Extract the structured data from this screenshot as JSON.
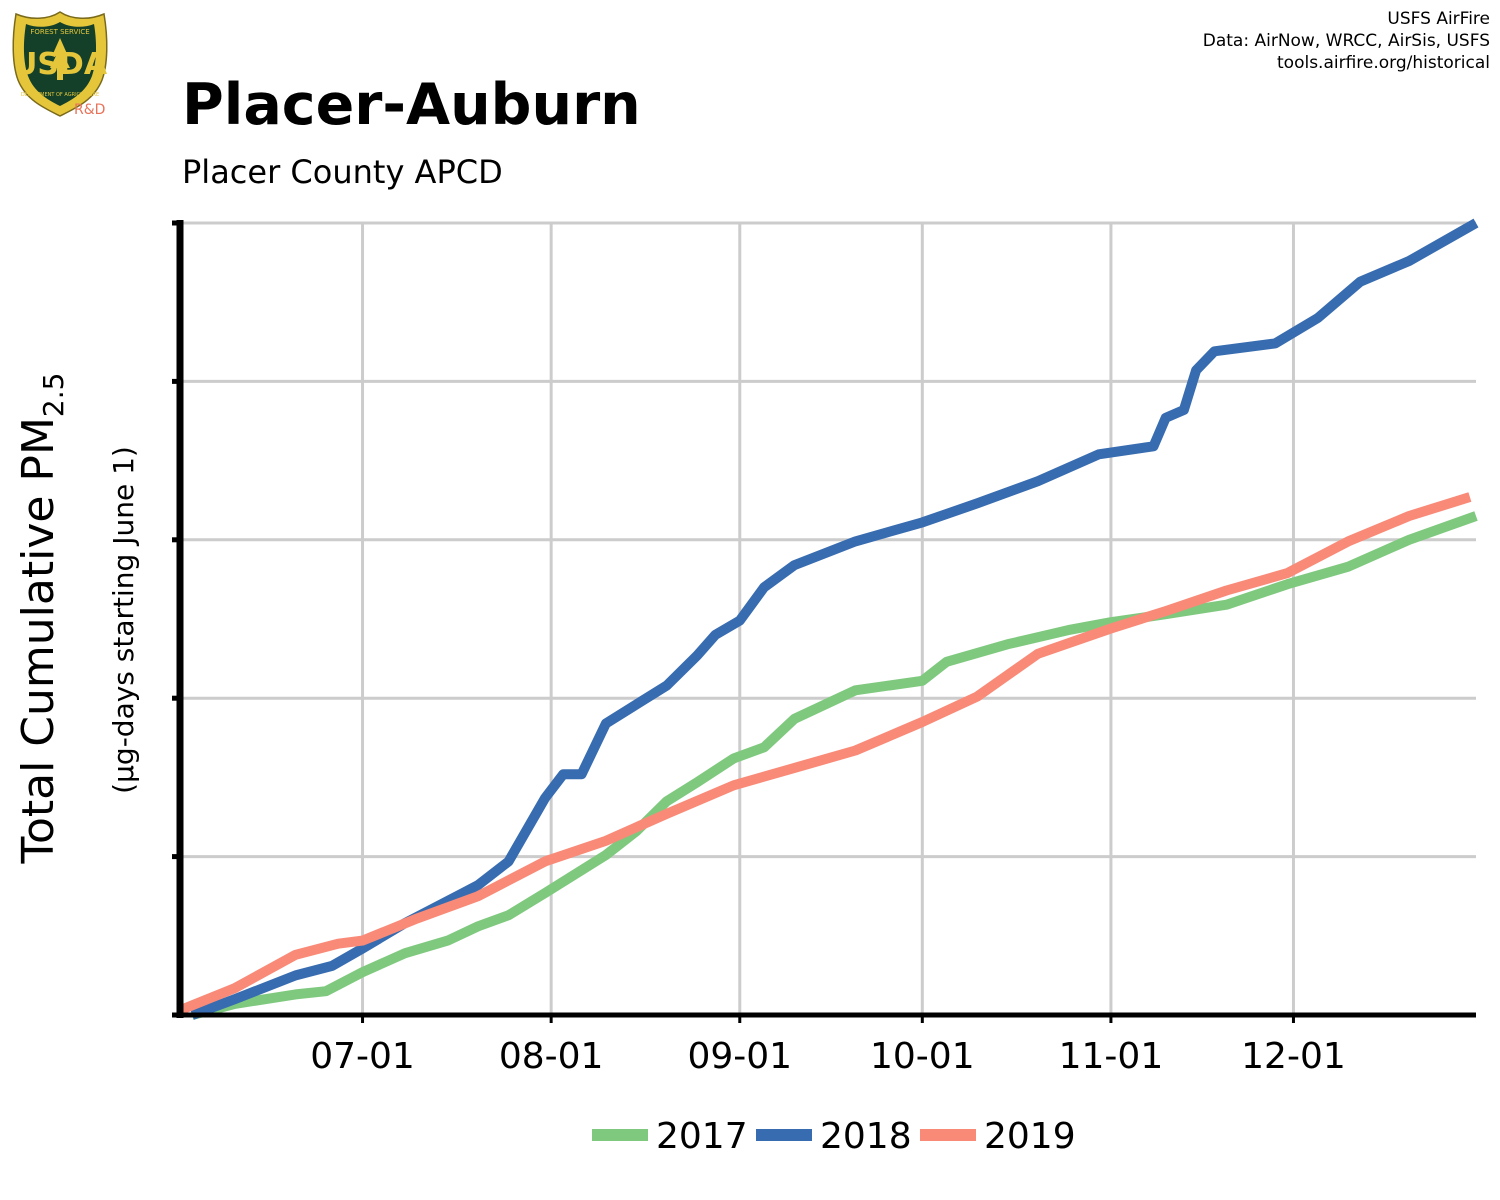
{
  "header": {
    "title": "Placer-Auburn",
    "subtitle": "Placer County APCD",
    "credits": [
      "USFS AirFire",
      "Data: AirNow, WRCC, AirSis, USFS",
      "tools.airfire.org/historical"
    ]
  },
  "logo": {
    "ring_text_top": "FOREST SERVICE",
    "ring_text_bottom": "DEPARTMENT OF AGRICULTURE",
    "letters": "USDA",
    "label": "R&D",
    "label_color": "#e8735a",
    "shield_color": "#14402a",
    "trim_color": "#e5c63b"
  },
  "chart_data": {
    "type": "line",
    "ylabel": "Total Cumulative PM",
    "ylabel_subscript": "2.5",
    "ylabel_sub": "(µg-days starting June 1)",
    "x_tick_labels": [
      "07-01",
      "08-01",
      "09-01",
      "10-01",
      "11-01",
      "12-01"
    ],
    "x_tick_dates": [
      "2000-07-01",
      "2000-08-01",
      "2000-09-01",
      "2000-10-01",
      "2000-11-01",
      "2000-12-01"
    ],
    "xlim": [
      "2000-06-01",
      "2000-12-31"
    ],
    "ylim": [
      0,
      5
    ],
    "y_ticks": [
      0,
      1,
      2,
      3,
      4,
      5
    ],
    "y_tick_labels_shown": false,
    "grid": true,
    "legend_position": "bottom-center",
    "series": [
      {
        "name": "2017",
        "color": "#7fc97f",
        "points": [
          [
            "2000-06-03",
            0.0
          ],
          [
            "2000-06-10",
            0.07
          ],
          [
            "2000-06-20",
            0.13
          ],
          [
            "2000-06-25",
            0.15
          ],
          [
            "2000-07-01",
            0.27
          ],
          [
            "2000-07-08",
            0.39
          ],
          [
            "2000-07-15",
            0.47
          ],
          [
            "2000-07-20",
            0.56
          ],
          [
            "2000-07-25",
            0.63
          ],
          [
            "2000-07-31",
            0.77
          ],
          [
            "2000-08-05",
            0.89
          ],
          [
            "2000-08-10",
            1.01
          ],
          [
            "2000-08-15",
            1.16
          ],
          [
            "2000-08-20",
            1.35
          ],
          [
            "2000-08-25",
            1.47
          ],
          [
            "2000-08-31",
            1.62
          ],
          [
            "2000-09-05",
            1.69
          ],
          [
            "2000-09-10",
            1.87
          ],
          [
            "2000-09-20",
            2.05
          ],
          [
            "2000-10-01",
            2.11
          ],
          [
            "2000-10-05",
            2.23
          ],
          [
            "2000-10-15",
            2.34
          ],
          [
            "2000-10-25",
            2.43
          ],
          [
            "2000-11-01",
            2.48
          ],
          [
            "2000-11-10",
            2.53
          ],
          [
            "2000-11-20",
            2.59
          ],
          [
            "2000-11-30",
            2.72
          ],
          [
            "2000-12-10",
            2.83
          ],
          [
            "2000-12-20",
            3.0
          ],
          [
            "2000-12-31",
            3.15
          ]
        ]
      },
      {
        "name": "2018",
        "color": "#386cb0",
        "points": [
          [
            "2000-06-03",
            0.0
          ],
          [
            "2000-06-10",
            0.1
          ],
          [
            "2000-06-20",
            0.25
          ],
          [
            "2000-06-26",
            0.31
          ],
          [
            "2000-07-01",
            0.42
          ],
          [
            "2000-07-08",
            0.58
          ],
          [
            "2000-07-15",
            0.72
          ],
          [
            "2000-07-20",
            0.82
          ],
          [
            "2000-07-25",
            0.97
          ],
          [
            "2000-07-31",
            1.37
          ],
          [
            "2000-08-03",
            1.52
          ],
          [
            "2000-08-06",
            1.52
          ],
          [
            "2000-08-10",
            1.84
          ],
          [
            "2000-08-15",
            1.96
          ],
          [
            "2000-08-20",
            2.08
          ],
          [
            "2000-08-25",
            2.27
          ],
          [
            "2000-08-28",
            2.4
          ],
          [
            "2000-09-01",
            2.49
          ],
          [
            "2000-09-05",
            2.7
          ],
          [
            "2000-09-10",
            2.84
          ],
          [
            "2000-09-20",
            2.99
          ],
          [
            "2000-10-01",
            3.11
          ],
          [
            "2000-10-10",
            3.23
          ],
          [
            "2000-10-20",
            3.37
          ],
          [
            "2000-10-30",
            3.54
          ],
          [
            "2000-11-08",
            3.59
          ],
          [
            "2000-11-10",
            3.77
          ],
          [
            "2000-11-13",
            3.82
          ],
          [
            "2000-11-15",
            4.07
          ],
          [
            "2000-11-18",
            4.19
          ],
          [
            "2000-11-28",
            4.24
          ],
          [
            "2000-12-05",
            4.4
          ],
          [
            "2000-12-12",
            4.63
          ],
          [
            "2000-12-20",
            4.76
          ],
          [
            "2000-12-31",
            5.0
          ]
        ]
      },
      {
        "name": "2019",
        "color": "#f98a78",
        "points": [
          [
            "2000-06-01",
            0.03
          ],
          [
            "2000-06-10",
            0.17
          ],
          [
            "2000-06-20",
            0.38
          ],
          [
            "2000-06-27",
            0.45
          ],
          [
            "2000-07-01",
            0.47
          ],
          [
            "2000-07-10",
            0.61
          ],
          [
            "2000-07-20",
            0.75
          ],
          [
            "2000-07-31",
            0.97
          ],
          [
            "2000-08-10",
            1.1
          ],
          [
            "2000-08-20",
            1.27
          ],
          [
            "2000-08-31",
            1.45
          ],
          [
            "2000-09-10",
            1.56
          ],
          [
            "2000-09-20",
            1.67
          ],
          [
            "2000-10-01",
            1.85
          ],
          [
            "2000-10-10",
            2.01
          ],
          [
            "2000-10-20",
            2.28
          ],
          [
            "2000-11-01",
            2.44
          ],
          [
            "2000-11-10",
            2.55
          ],
          [
            "2000-11-20",
            2.68
          ],
          [
            "2000-11-30",
            2.79
          ],
          [
            "2000-12-10",
            2.99
          ],
          [
            "2000-12-20",
            3.15
          ],
          [
            "2000-12-30",
            3.27
          ]
        ]
      }
    ]
  }
}
